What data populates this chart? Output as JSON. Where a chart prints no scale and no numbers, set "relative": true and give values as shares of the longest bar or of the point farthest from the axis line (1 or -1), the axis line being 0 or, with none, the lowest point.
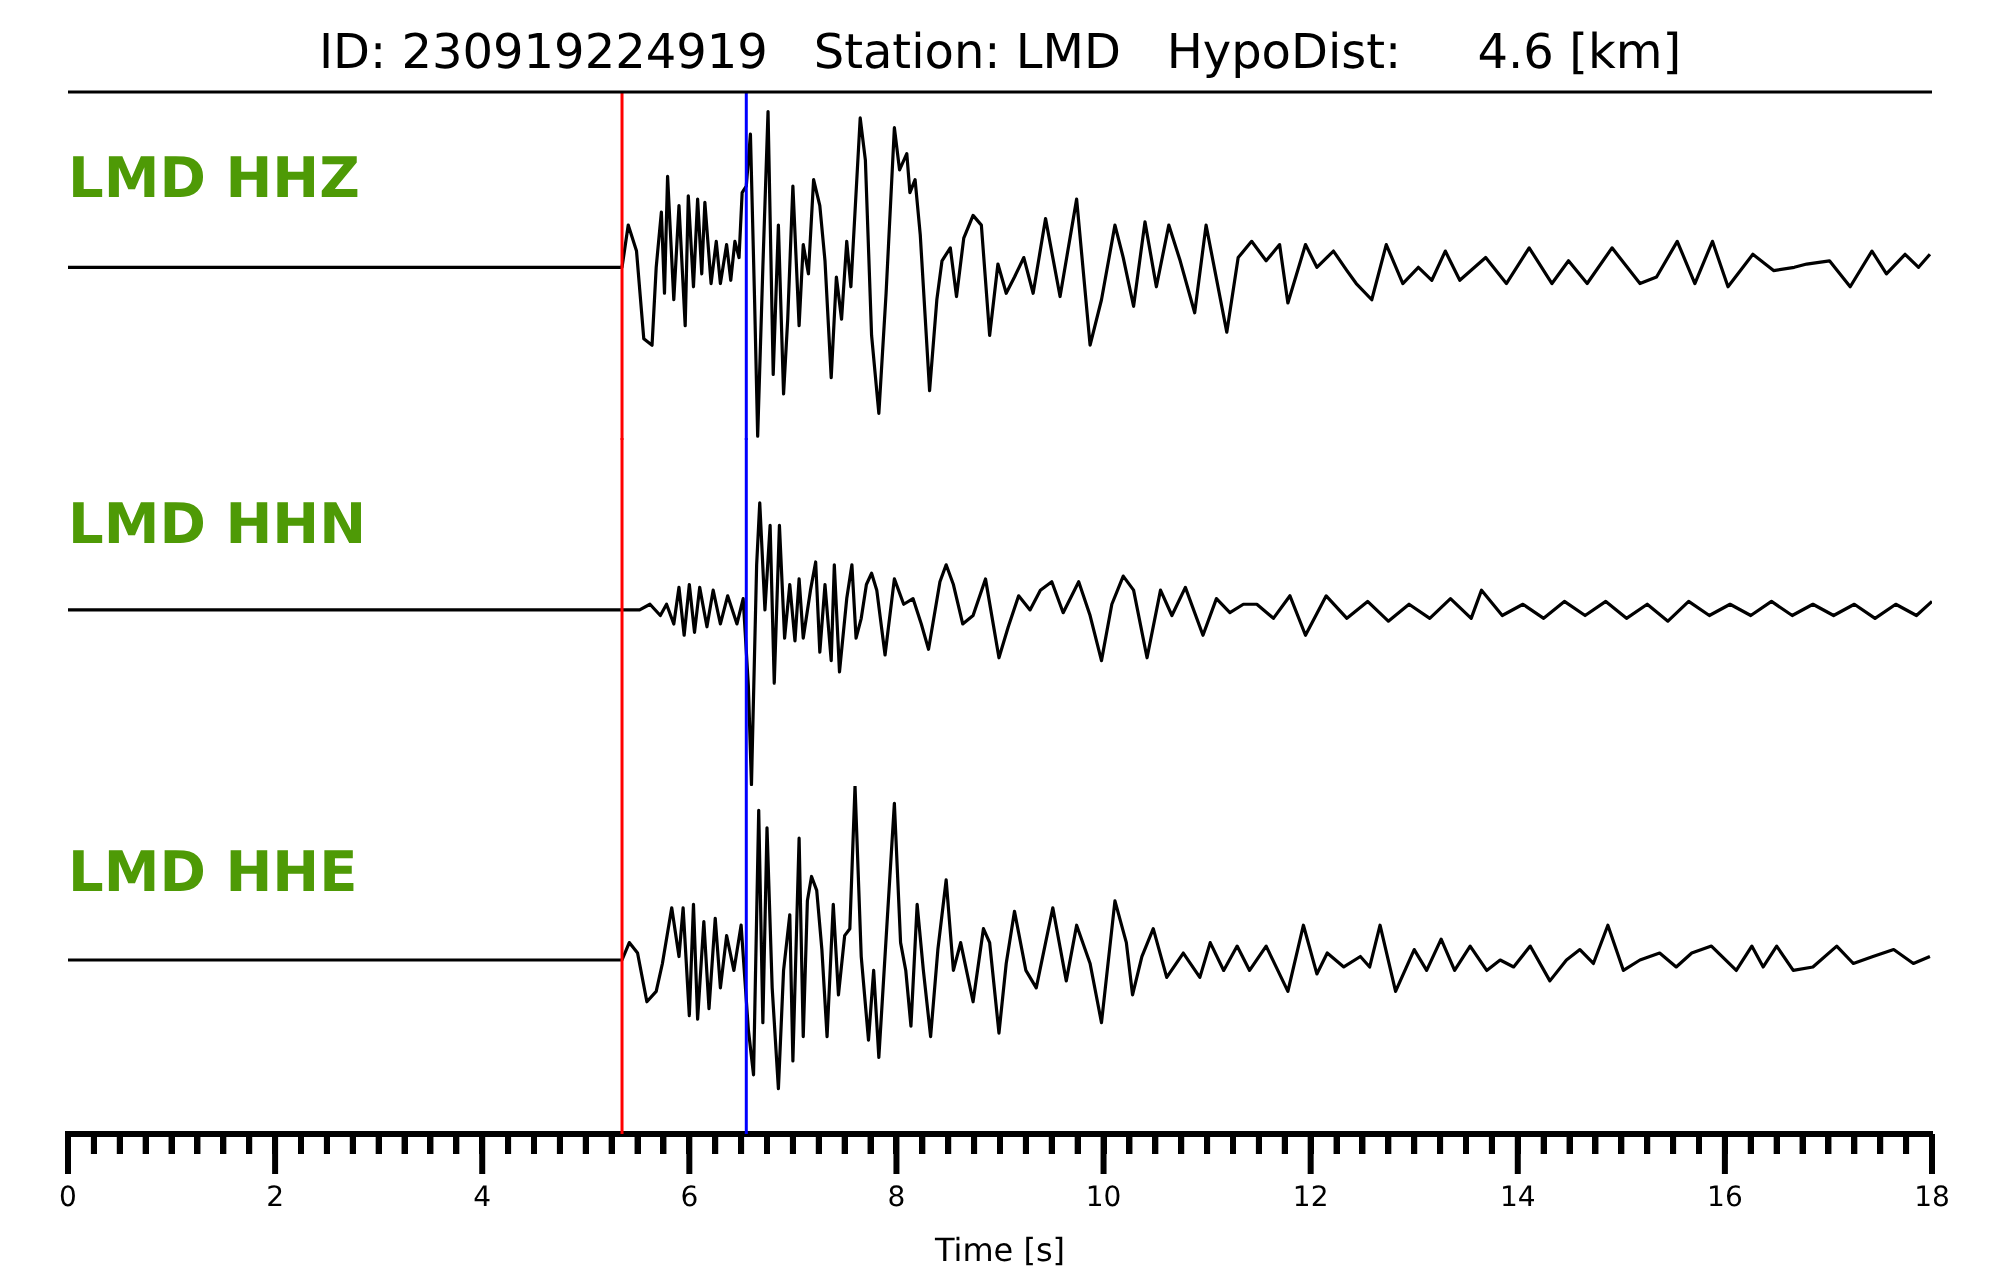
{
  "chart_data": [
    {
      "type": "line",
      "relative": true,
      "title": "ID: 230919224919   Station: LMD   HypoDist:     4.6 [km]",
      "xlim": [
        0,
        18
      ],
      "tick_labels": false,
      "ref_lines": [
        {
          "axis": "x",
          "value": 5.35,
          "color": "#ff0000"
        },
        {
          "axis": "x",
          "value": 6.55,
          "color": "#0000ff"
        }
      ],
      "series": [
        {
          "name": "LMD HHZ",
          "color": "#000000",
          "x": [
            0,
            5.35,
            5.36,
            5.41,
            5.49,
            5.56,
            5.64,
            5.68,
            5.73,
            5.76,
            5.79,
            5.85,
            5.9,
            5.96,
            5.99,
            6.04,
            6.08,
            6.12,
            6.15,
            6.21,
            6.26,
            6.3,
            6.36,
            6.4,
            6.44,
            6.48,
            6.51,
            6.55,
            6.59,
            6.63,
            6.66,
            6.71,
            6.76,
            6.81,
            6.86,
            6.91,
            6.95,
            7.0,
            7.06,
            7.1,
            7.15,
            7.2,
            7.26,
            7.31,
            7.37,
            7.42,
            7.47,
            7.52,
            7.56,
            7.65,
            7.7,
            7.76,
            7.83,
            7.9,
            7.98,
            8.03,
            8.1,
            8.13,
            8.18,
            8.23,
            8.32,
            8.39,
            8.44,
            8.52,
            8.58,
            8.65,
            8.74,
            8.82,
            8.9,
            8.98,
            9.06,
            9.14,
            9.23,
            9.32,
            9.44,
            9.58,
            9.74,
            9.87,
            9.98,
            10.11,
            10.19,
            10.29,
            10.4,
            10.51,
            10.63,
            10.74,
            10.88,
            10.99,
            11.19,
            11.3,
            11.43,
            11.57,
            11.7,
            11.78,
            11.95,
            12.06,
            12.22,
            12.35,
            12.44,
            12.59,
            12.73,
            12.89,
            13.04,
            13.17,
            13.3,
            13.44,
            13.69,
            13.89,
            14.11,
            14.33,
            14.49,
            14.67,
            14.91,
            15.18,
            15.34,
            15.54,
            15.71,
            15.88,
            16.03,
            16.27,
            16.47,
            16.67,
            16.79,
            17.01,
            17.21,
            17.42,
            17.56,
            17.74,
            17.87,
            17.98
          ],
          "values": [
            0.52,
            0.52,
            0.52,
            0.65,
            0.57,
            0.3,
            0.28,
            0.52,
            0.69,
            0.44,
            0.8,
            0.42,
            0.71,
            0.34,
            0.74,
            0.46,
            0.73,
            0.5,
            0.72,
            0.47,
            0.6,
            0.47,
            0.59,
            0.48,
            0.6,
            0.55,
            0.75,
            0.77,
            0.93,
            0.42,
            0,
            0.52,
            1,
            0.19,
            0.65,
            0.13,
            0.36,
            0.77,
            0.34,
            0.59,
            0.5,
            0.79,
            0.71,
            0.54,
            0.18,
            0.49,
            0.36,
            0.6,
            0.46,
            0.98,
            0.85,
            0.31,
            0.07,
            0.44,
            0.95,
            0.82,
            0.87,
            0.75,
            0.79,
            0.62,
            0.14,
            0.42,
            0.54,
            0.58,
            0.43,
            0.61,
            0.68,
            0.65,
            0.31,
            0.53,
            0.44,
            0.49,
            0.55,
            0.44,
            0.67,
            0.43,
            0.73,
            0.28,
            0.42,
            0.65,
            0.55,
            0.4,
            0.66,
            0.46,
            0.65,
            0.54,
            0.38,
            0.65,
            0.32,
            0.55,
            0.6,
            0.54,
            0.59,
            0.41,
            0.59,
            0.52,
            0.57,
            0.51,
            0.47,
            0.42,
            0.59,
            0.47,
            0.52,
            0.48,
            0.57,
            0.48,
            0.55,
            0.47,
            0.58,
            0.47,
            0.54,
            0.47,
            0.58,
            0.47,
            0.49,
            0.6,
            0.47,
            0.6,
            0.46,
            0.56,
            0.51,
            0.52,
            0.53,
            0.54,
            0.46,
            0.57,
            0.5,
            0.56,
            0.52,
            0.56
          ]
        }
      ]
    },
    {
      "type": "line",
      "relative": true,
      "xlim": [
        0,
        18
      ],
      "tick_labels": false,
      "ref_lines": [
        {
          "axis": "x",
          "value": 5.35,
          "color": "#ff0000"
        },
        {
          "axis": "x",
          "value": 6.55,
          "color": "#0000ff"
        }
      ],
      "series": [
        {
          "name": "LMD HHN",
          "color": "#000000",
          "x": [
            0,
            5.35,
            5.36,
            5.52,
            5.62,
            5.72,
            5.78,
            5.85,
            5.9,
            5.95,
            6.0,
            6.05,
            6.1,
            6.17,
            6.23,
            6.3,
            6.37,
            6.46,
            6.52,
            6.57,
            6.6,
            6.65,
            6.68,
            6.73,
            6.78,
            6.82,
            6.87,
            6.92,
            6.97,
            7.02,
            7.06,
            7.1,
            7.17,
            7.22,
            7.26,
            7.31,
            7.37,
            7.4,
            7.45,
            7.52,
            7.57,
            7.61,
            7.66,
            7.71,
            7.76,
            7.81,
            7.89,
            7.98,
            8.07,
            8.16,
            8.24,
            8.31,
            8.42,
            8.48,
            8.55,
            8.64,
            8.74,
            8.86,
            8.99,
            9.08,
            9.18,
            9.29,
            9.39,
            9.5,
            9.61,
            9.76,
            9.87,
            9.98,
            10.08,
            10.19,
            10.29,
            10.42,
            10.55,
            10.66,
            10.79,
            10.96,
            11.09,
            11.22,
            11.35,
            11.48,
            11.64,
            11.8,
            11.95,
            12.15,
            12.35,
            12.55,
            12.75,
            12.95,
            13.15,
            13.35,
            13.55,
            13.65,
            13.85,
            14.05,
            14.25,
            14.45,
            14.65,
            14.85,
            15.05,
            15.25,
            15.45,
            15.65,
            15.85,
            16.05,
            16.25,
            16.45,
            16.65,
            16.85,
            17.05,
            17.25,
            17.45,
            17.65,
            17.85,
            18.0
          ],
          "values": [
            0.62,
            0.62,
            0.62,
            0.62,
            0.64,
            0.6,
            0.64,
            0.57,
            0.7,
            0.53,
            0.71,
            0.54,
            0.7,
            0.56,
            0.69,
            0.57,
            0.67,
            0.57,
            0.66,
            0.35,
            0,
            0.78,
            1,
            0.62,
            0.92,
            0.36,
            0.92,
            0.52,
            0.71,
            0.51,
            0.73,
            0.52,
            0.69,
            0.79,
            0.47,
            0.71,
            0.44,
            0.78,
            0.4,
            0.66,
            0.78,
            0.52,
            0.59,
            0.71,
            0.75,
            0.69,
            0.46,
            0.73,
            0.64,
            0.66,
            0.57,
            0.48,
            0.72,
            0.78,
            0.71,
            0.57,
            0.6,
            0.73,
            0.45,
            0.56,
            0.67,
            0.62,
            0.69,
            0.72,
            0.61,
            0.72,
            0.6,
            0.44,
            0.64,
            0.74,
            0.69,
            0.45,
            0.69,
            0.6,
            0.7,
            0.53,
            0.66,
            0.61,
            0.64,
            0.64,
            0.59,
            0.67,
            0.53,
            0.67,
            0.59,
            0.65,
            0.58,
            0.64,
            0.59,
            0.66,
            0.59,
            0.69,
            0.6,
            0.64,
            0.59,
            0.65,
            0.6,
            0.65,
            0.59,
            0.64,
            0.58,
            0.65,
            0.6,
            0.64,
            0.6,
            0.65,
            0.6,
            0.64,
            0.6,
            0.64,
            0.59,
            0.64,
            0.6,
            0.65
          ]
        }
      ]
    },
    {
      "type": "line",
      "relative": true,
      "xlim": [
        0,
        18
      ],
      "tick_labels": "x",
      "xlabel": "Time [s]",
      "xticks": [
        0,
        {
          "value": 0.25,
          "label": null
        },
        {
          "value": 0.5,
          "label": null
        },
        {
          "value": 0.75,
          "label": null
        },
        {
          "value": 1,
          "label": null
        },
        {
          "value": 1.25,
          "label": null
        },
        {
          "value": 1.5,
          "label": null
        },
        {
          "value": 1.75,
          "label": null
        },
        2,
        {
          "value": 2.25,
          "label": null
        },
        {
          "value": 2.5,
          "label": null
        },
        {
          "value": 2.75,
          "label": null
        },
        {
          "value": 3,
          "label": null
        },
        {
          "value": 3.25,
          "label": null
        },
        {
          "value": 3.5,
          "label": null
        },
        {
          "value": 3.75,
          "label": null
        },
        4,
        {
          "value": 4.25,
          "label": null
        },
        {
          "value": 4.5,
          "label": null
        },
        {
          "value": 4.75,
          "label": null
        },
        {
          "value": 5,
          "label": null
        },
        {
          "value": 5.25,
          "label": null
        },
        {
          "value": 5.5,
          "label": null
        },
        {
          "value": 5.75,
          "label": null
        },
        6,
        {
          "value": 6.25,
          "label": null
        },
        {
          "value": 6.5,
          "label": null
        },
        {
          "value": 6.75,
          "label": null
        },
        {
          "value": 7,
          "label": null
        },
        {
          "value": 7.25,
          "label": null
        },
        {
          "value": 7.5,
          "label": null
        },
        {
          "value": 7.75,
          "label": null
        },
        8,
        {
          "value": 8.25,
          "label": null
        },
        {
          "value": 8.5,
          "label": null
        },
        {
          "value": 8.75,
          "label": null
        },
        {
          "value": 9,
          "label": null
        },
        {
          "value": 9.25,
          "label": null
        },
        {
          "value": 9.5,
          "label": null
        },
        {
          "value": 9.75,
          "label": null
        },
        10,
        {
          "value": 10.25,
          "label": null
        },
        {
          "value": 10.5,
          "label": null
        },
        {
          "value": 10.75,
          "label": null
        },
        {
          "value": 11,
          "label": null
        },
        {
          "value": 11.25,
          "label": null
        },
        {
          "value": 11.5,
          "label": null
        },
        {
          "value": 11.75,
          "label": null
        },
        12,
        {
          "value": 12.25,
          "label": null
        },
        {
          "value": 12.5,
          "label": null
        },
        {
          "value": 12.75,
          "label": null
        },
        {
          "value": 13,
          "label": null
        },
        {
          "value": 13.25,
          "label": null
        },
        {
          "value": 13.5,
          "label": null
        },
        {
          "value": 13.75,
          "label": null
        },
        14,
        {
          "value": 14.25,
          "label": null
        },
        {
          "value": 14.5,
          "label": null
        },
        {
          "value": 14.75,
          "label": null
        },
        {
          "value": 15,
          "label": null
        },
        {
          "value": 15.25,
          "label": null
        },
        {
          "value": 15.5,
          "label": null
        },
        {
          "value": 15.75,
          "label": null
        },
        16,
        {
          "value": 16.25,
          "label": null
        },
        {
          "value": 16.5,
          "label": null
        },
        {
          "value": 16.75,
          "label": null
        },
        {
          "value": 17,
          "label": null
        },
        {
          "value": 17.25,
          "label": null
        },
        {
          "value": 17.5,
          "label": null
        },
        {
          "value": 17.75,
          "label": null
        },
        18
      ],
      "ref_lines": [
        {
          "axis": "x",
          "value": 5.35,
          "color": "#ff0000"
        },
        {
          "axis": "x",
          "value": 6.55,
          "color": "#0000ff"
        }
      ],
      "series": [
        {
          "name": "LMD HHE",
          "color": "#000000",
          "x": [
            0,
            5.35,
            5.36,
            5.42,
            5.5,
            5.59,
            5.68,
            5.74,
            5.83,
            5.9,
            5.94,
            6.0,
            6.04,
            6.08,
            6.14,
            6.19,
            6.25,
            6.3,
            6.36,
            6.43,
            6.5,
            6.57,
            6.62,
            6.67,
            6.71,
            6.75,
            6.8,
            6.86,
            6.91,
            6.97,
            7.0,
            7.06,
            7.1,
            7.14,
            7.18,
            7.23,
            7.28,
            7.33,
            7.39,
            7.44,
            7.5,
            7.55,
            7.6,
            7.66,
            7.73,
            7.78,
            7.83,
            7.91,
            7.98,
            8.04,
            8.09,
            8.14,
            8.2,
            8.26,
            8.33,
            8.4,
            8.48,
            8.55,
            8.62,
            8.74,
            8.84,
            8.9,
            8.99,
            9.06,
            9.14,
            9.25,
            9.35,
            9.51,
            9.64,
            9.74,
            9.87,
            9.98,
            10.11,
            10.22,
            10.28,
            10.37,
            10.48,
            10.61,
            10.77,
            10.93,
            11.03,
            11.16,
            11.29,
            11.41,
            11.57,
            11.78,
            11.93,
            12.06,
            12.16,
            12.32,
            12.48,
            12.57,
            12.67,
            12.82,
            13.0,
            13.12,
            13.26,
            13.39,
            13.54,
            13.7,
            13.83,
            13.96,
            14.12,
            14.31,
            14.47,
            14.6,
            14.73,
            14.87,
            15.02,
            15.18,
            15.37,
            15.53,
            15.68,
            15.87,
            16.11,
            16.26,
            16.37,
            16.5,
            16.66,
            16.85,
            17.08,
            17.24,
            17.43,
            17.63,
            17.82,
            17.98
          ],
          "values": [
            0.5,
            0.5,
            0.5,
            0.55,
            0.52,
            0.38,
            0.41,
            0.49,
            0.65,
            0.51,
            0.65,
            0.34,
            0.66,
            0.33,
            0.61,
            0.36,
            0.62,
            0.42,
            0.57,
            0.47,
            0.6,
            0.3,
            0.17,
            0.93,
            0.32,
            0.88,
            0.42,
            0.13,
            0.47,
            0.63,
            0.21,
            0.85,
            0.28,
            0.67,
            0.74,
            0.7,
            0.53,
            0.28,
            0.66,
            0.4,
            0.57,
            0.59,
            1,
            0.51,
            0.27,
            0.47,
            0.22,
            0.61,
            0.95,
            0.55,
            0.47,
            0.31,
            0.66,
            0.47,
            0.28,
            0.53,
            0.73,
            0.47,
            0.55,
            0.38,
            0.59,
            0.55,
            0.29,
            0.49,
            0.64,
            0.47,
            0.42,
            0.65,
            0.44,
            0.6,
            0.49,
            0.32,
            0.67,
            0.55,
            0.4,
            0.51,
            0.59,
            0.45,
            0.52,
            0.45,
            0.55,
            0.47,
            0.54,
            0.47,
            0.54,
            0.41,
            0.6,
            0.46,
            0.52,
            0.48,
            0.51,
            0.48,
            0.6,
            0.41,
            0.53,
            0.47,
            0.56,
            0.47,
            0.54,
            0.47,
            0.5,
            0.48,
            0.54,
            0.44,
            0.5,
            0.53,
            0.49,
            0.6,
            0.47,
            0.5,
            0.52,
            0.48,
            0.52,
            0.54,
            0.47,
            0.54,
            0.48,
            0.54,
            0.47,
            0.48,
            0.54,
            0.49,
            0.51,
            0.53,
            0.49,
            0.51
          ]
        }
      ]
    }
  ]
}
